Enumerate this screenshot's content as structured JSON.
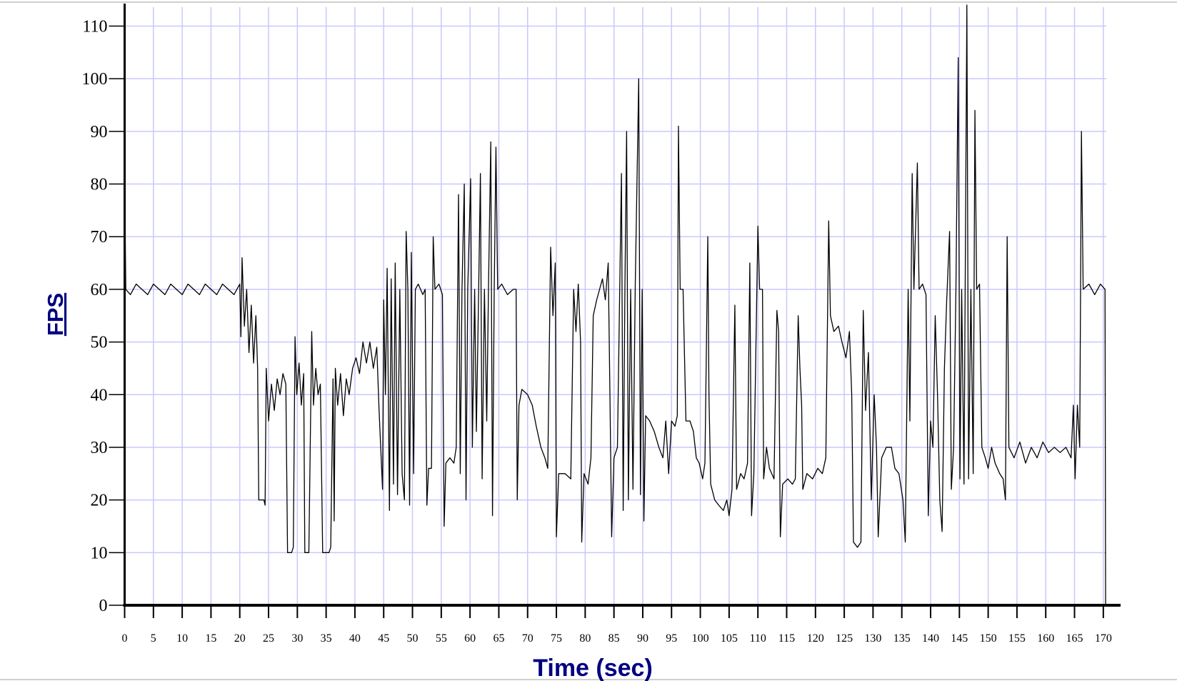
{
  "chart_data": {
    "type": "line",
    "x_label": "Time (sec)",
    "y_label": "FPS",
    "color": "#000000",
    "grid": true,
    "xlim": [
      0,
      173
    ],
    "ylim": [
      0,
      114
    ],
    "xticks": [
      0,
      5,
      10,
      15,
      20,
      25,
      30,
      35,
      40,
      45,
      50,
      55,
      60,
      65,
      70,
      75,
      80,
      85,
      90,
      95,
      100,
      105,
      110,
      115,
      120,
      125,
      130,
      135,
      140,
      145,
      150,
      155,
      160,
      165,
      170
    ],
    "yticks": [
      0,
      10,
      20,
      30,
      40,
      50,
      60,
      70,
      80,
      90,
      100,
      110
    ],
    "x": [
      0,
      0.2,
      1,
      2,
      3,
      4,
      5,
      6,
      7,
      8,
      9,
      10,
      11,
      12,
      13,
      14,
      15,
      16,
      17,
      18,
      19,
      20,
      20.2,
      20.4,
      20.8,
      21.2,
      21.6,
      22,
      22.4,
      22.8,
      23.1,
      23.3,
      24.2,
      24.4,
      24.6,
      25,
      25.5,
      26,
      26.5,
      27,
      27.5,
      28,
      28.3,
      29,
      29.3,
      29.6,
      29.9,
      30.3,
      30.7,
      31.1,
      31.3,
      32,
      32.5,
      32.8,
      33.2,
      33.6,
      34,
      34.4,
      35.5,
      35.8,
      36.2,
      36.4,
      36.6,
      37,
      37.5,
      38,
      38.5,
      39,
      39.6,
      40.2,
      40.8,
      41.4,
      42,
      42.6,
      43.2,
      43.8,
      44.2,
      44.8,
      45,
      45.3,
      45.6,
      46,
      46.3,
      46.7,
      47,
      47.4,
      47.8,
      48.2,
      48.6,
      48.9,
      49.2,
      49.5,
      49.8,
      50.2,
      50.5,
      51,
      51.8,
      52.2,
      52.5,
      52.8,
      53.3,
      53.6,
      53.9,
      54.6,
      55.2,
      55.5,
      55.8,
      56.5,
      57.2,
      57.6,
      58,
      58.3,
      58.6,
      59,
      59.3,
      59.6,
      60.1,
      60.4,
      60.8,
      61.1,
      61.5,
      61.8,
      62.1,
      62.5,
      62.9,
      63.2,
      63.6,
      63.9,
      64.2,
      64.5,
      64.8,
      65.5,
      66.5,
      67.5,
      68,
      68.2,
      68.5,
      69,
      70,
      70.8,
      71.5,
      72.3,
      73,
      73.5,
      74,
      74.4,
      74.8,
      75,
      75.4,
      76.5,
      77.5,
      78,
      78.4,
      78.8,
      79.2,
      79.4,
      79.8,
      80.5,
      81,
      81.4,
      82,
      82.5,
      83,
      83.5,
      84,
      84.3,
      84.6,
      85,
      85.6,
      86,
      86.3,
      86.6,
      86.9,
      87.2,
      87.5,
      87.9,
      88.3,
      88.7,
      89.3,
      89.6,
      89.9,
      90.2,
      90.5,
      91.2,
      92,
      92.8,
      93.5,
      94,
      94.5,
      95,
      95.6,
      96,
      96.2,
      96.5,
      97,
      97.5,
      98.2,
      98.8,
      99.3,
      99.8,
      100.4,
      100.8,
      101.3,
      101.5,
      101.8,
      102.5,
      103.2,
      104,
      104.6,
      105,
      105.5,
      106,
      106.3,
      107,
      107.6,
      108.2,
      108.6,
      108.9,
      109.3,
      110,
      110.3,
      110.8,
      111,
      111.5,
      112,
      112.8,
      113.3,
      113.6,
      113.9,
      114.3,
      115.2,
      116,
      116.5,
      117,
      117.3,
      117.6,
      117.8,
      118.5,
      119.5,
      120.4,
      121.2,
      121.8,
      122.3,
      122.6,
      123.2,
      124,
      124.6,
      125.3,
      125.9,
      126.3,
      126.6,
      127.3,
      127.9,
      128.3,
      128.7,
      129.2,
      129.7,
      130.2,
      130.6,
      130.9,
      131.5,
      132.3,
      133.2,
      133.8,
      134.5,
      135.2,
      135.6,
      136.1,
      136.4,
      136.8,
      137.1,
      137.7,
      138,
      138.6,
      139.2,
      139.6,
      140,
      140.4,
      140.8,
      141.2,
      141.6,
      142,
      142.4,
      142.8,
      143.3,
      143.6,
      144,
      144.4,
      144.8,
      145.1,
      145.4,
      145.8,
      146.3,
      146.6,
      147,
      147.4,
      147.7,
      148,
      148.5,
      148.9,
      149.5,
      150,
      150.6,
      151.2,
      152,
      152.6,
      153,
      153.3,
      153.6,
      154.5,
      155.5,
      156.5,
      157.5,
      158.5,
      159.5,
      160.5,
      161.5,
      162.5,
      163.5,
      164.4,
      164.8,
      165.1,
      165.5,
      165.9,
      166.2,
      166.5,
      167.5,
      168.5,
      169.5,
      170.3,
      170.4
    ],
    "values": [
      83,
      60,
      59,
      61,
      60,
      59,
      61,
      60,
      59,
      61,
      60,
      59,
      61,
      60,
      59,
      61,
      60,
      59,
      61,
      60,
      59,
      61,
      51,
      66,
      53,
      60,
      48,
      57,
      46,
      55,
      45,
      20,
      20,
      19,
      45,
      35,
      42,
      37,
      43,
      40,
      44,
      42,
      10,
      10,
      11,
      51,
      40,
      46,
      38,
      44,
      10,
      10,
      52,
      38,
      45,
      40,
      42,
      10,
      10,
      11,
      43,
      16,
      45,
      38,
      44,
      36,
      43,
      40,
      45,
      47,
      44,
      50,
      46,
      50,
      45,
      49,
      37,
      22,
      58,
      40,
      64,
      18,
      62,
      23,
      65,
      21,
      60,
      25,
      20,
      71,
      60,
      19,
      67,
      25,
      60,
      61,
      59,
      60,
      19,
      26,
      26,
      70,
      60,
      61,
      59,
      15,
      27,
      28,
      27,
      30,
      78,
      25,
      60,
      80,
      20,
      60,
      81,
      30,
      60,
      33,
      60,
      82,
      24,
      60,
      35,
      60,
      88,
      17,
      60,
      87,
      60,
      61,
      59,
      60,
      60,
      20,
      38,
      41,
      40,
      38,
      34,
      30,
      28,
      26,
      68,
      55,
      65,
      13,
      25,
      25,
      24,
      60,
      52,
      61,
      50,
      12,
      25,
      23,
      28,
      55,
      58,
      60,
      62,
      58,
      65,
      40,
      13,
      28,
      30,
      60,
      82,
      18,
      60,
      90,
      20,
      60,
      22,
      61,
      100,
      21,
      60,
      16,
      36,
      35,
      33,
      30,
      28,
      35,
      25,
      35,
      34,
      36,
      91,
      60,
      60,
      35,
      35,
      33,
      28,
      27,
      24,
      27,
      70,
      40,
      23,
      20,
      19,
      18,
      20,
      17,
      22,
      57,
      22,
      25,
      24,
      27,
      65,
      17,
      25,
      72,
      60,
      60,
      24,
      30,
      26,
      24,
      56,
      52,
      13,
      23,
      24,
      23,
      24,
      55,
      45,
      38,
      22,
      25,
      24,
      26,
      25,
      28,
      73,
      55,
      52,
      53,
      50,
      47,
      52,
      40,
      12,
      11,
      12,
      56,
      37,
      48,
      20,
      40,
      30,
      13,
      28,
      30,
      30,
      26,
      25,
      20,
      12,
      60,
      35,
      82,
      60,
      84,
      60,
      61,
      59,
      17,
      35,
      30,
      55,
      40,
      20,
      14,
      45,
      58,
      71,
      22,
      30,
      60,
      104,
      24,
      60,
      23,
      114,
      24,
      60,
      25,
      94,
      60,
      61,
      30,
      28,
      26,
      30,
      27,
      25,
      24,
      20,
      70,
      30,
      28,
      31,
      27,
      30,
      28,
      31,
      29,
      30,
      29,
      30,
      28,
      38,
      24,
      38,
      30,
      90,
      60,
      61,
      59,
      61,
      60,
      0
    ]
  }
}
